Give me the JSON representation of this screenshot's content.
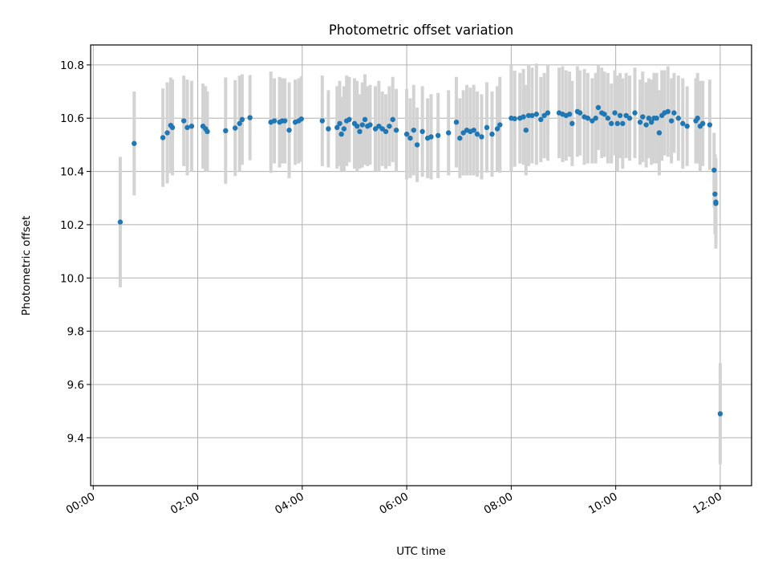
{
  "chart_data": {
    "type": "scatter",
    "title": "Photometric offset variation",
    "xlabel": "UTC time",
    "ylabel": "Photometric offset",
    "x_unit": "UTC",
    "xlim": [
      "00:00",
      "12:36"
    ],
    "ylim": [
      9.22,
      10.875
    ],
    "x_ticks": [
      "00:00",
      "02:00",
      "04:00",
      "06:00",
      "08:00",
      "10:00",
      "12:00"
    ],
    "y_ticks": [
      9.4,
      9.6,
      9.8,
      10.0,
      10.2,
      10.4,
      10.6,
      10.8
    ],
    "y_tick_labels": [
      "9.4",
      "9.6",
      "9.8",
      "10.0",
      "10.2",
      "10.4",
      "10.6",
      "10.8"
    ],
    "grid": true,
    "legend": "none",
    "colors": {
      "points": "#1f77b4",
      "error_bars": "#d3d3d3",
      "grid": "#b0b0b0"
    },
    "series": [
      {
        "x": [
          "00:31",
          "00:47",
          "01:20",
          "01:25",
          "01:29",
          "01:31",
          "01:44",
          "01:48",
          "01:53",
          "02:06",
          "02:09",
          "02:11",
          "02:32",
          "02:43",
          "02:48",
          "02:51",
          "03:00",
          "03:24",
          "03:28",
          "03:34",
          "03:37",
          "03:40",
          "03:45",
          "03:52",
          "03:56",
          "03:59",
          "04:23",
          "04:30",
          "04:40",
          "04:43",
          "04:45",
          "04:48",
          "04:51",
          "04:54",
          "05:00",
          "05:03",
          "05:06",
          "05:09",
          "05:12",
          "05:15",
          "05:18",
          "05:24",
          "05:28",
          "05:32",
          "05:36",
          "05:40",
          "05:44",
          "05:48",
          "06:00",
          "06:04",
          "06:08",
          "06:12",
          "06:18",
          "06:24",
          "06:28",
          "06:36",
          "06:48",
          "06:57",
          "07:01",
          "07:05",
          "07:09",
          "07:13",
          "07:17",
          "07:21",
          "07:26",
          "07:32",
          "07:38",
          "07:44",
          "07:47",
          "08:00",
          "08:04",
          "08:10",
          "08:14",
          "08:17",
          "08:20",
          "08:24",
          "08:29",
          "08:34",
          "08:38",
          "08:42",
          "08:55",
          "08:59",
          "09:03",
          "09:07",
          "09:10",
          "09:16",
          "09:19",
          "09:24",
          "09:28",
          "09:33",
          "09:37",
          "09:40",
          "09:44",
          "09:47",
          "09:51",
          "09:55",
          "09:59",
          "10:02",
          "10:05",
          "10:08",
          "10:12",
          "10:16",
          "10:22",
          "10:28",
          "10:31",
          "10:35",
          "10:38",
          "10:41",
          "10:44",
          "10:47",
          "10:50",
          "10:53",
          "10:56",
          "11:00",
          "11:04",
          "11:07",
          "11:12",
          "11:17",
          "11:22",
          "11:32",
          "11:34",
          "11:37",
          "11:40",
          "11:48",
          "11:53",
          "11:54",
          "11:55",
          "11:55",
          "12:00"
        ],
        "y": [
          10.21,
          10.505,
          10.527,
          10.545,
          10.573,
          10.565,
          10.59,
          10.565,
          10.57,
          10.57,
          10.56,
          10.55,
          10.553,
          10.563,
          10.58,
          10.595,
          10.602,
          10.585,
          10.59,
          10.585,
          10.59,
          10.59,
          10.555,
          10.585,
          10.59,
          10.597,
          10.59,
          10.56,
          10.565,
          10.58,
          10.54,
          10.56,
          10.59,
          10.595,
          10.58,
          10.57,
          10.55,
          10.575,
          10.595,
          10.57,
          10.575,
          10.56,
          10.57,
          10.56,
          10.55,
          10.57,
          10.595,
          10.555,
          10.54,
          10.525,
          10.555,
          10.5,
          10.55,
          10.525,
          10.53,
          10.535,
          10.545,
          10.585,
          10.525,
          10.545,
          10.555,
          10.55,
          10.555,
          10.54,
          10.53,
          10.565,
          10.54,
          10.56,
          10.575,
          10.6,
          10.598,
          10.6,
          10.605,
          10.555,
          10.61,
          10.61,
          10.615,
          10.595,
          10.61,
          10.62,
          10.62,
          10.615,
          10.61,
          10.615,
          10.58,
          10.625,
          10.62,
          10.605,
          10.6,
          10.59,
          10.6,
          10.64,
          10.62,
          10.615,
          10.6,
          10.58,
          10.62,
          10.58,
          10.61,
          10.58,
          10.61,
          10.6,
          10.62,
          10.585,
          10.605,
          10.575,
          10.6,
          10.585,
          10.6,
          10.6,
          10.545,
          10.61,
          10.62,
          10.625,
          10.59,
          10.62,
          10.6,
          10.58,
          10.57,
          10.59,
          10.6,
          10.57,
          10.58,
          10.575,
          10.405,
          10.315,
          10.285,
          10.28,
          9.49
        ],
        "error": [
          0.245,
          0.195,
          0.185,
          0.19,
          0.18,
          0.18,
          0.17,
          0.18,
          0.17,
          0.16,
          0.16,
          0.15,
          0.2,
          0.18,
          0.18,
          0.17,
          0.16,
          0.19,
          0.16,
          0.17,
          0.16,
          0.16,
          0.18,
          0.16,
          0.16,
          0.16,
          0.17,
          0.145,
          0.155,
          0.16,
          0.14,
          0.16,
          0.17,
          0.16,
          0.17,
          0.17,
          0.14,
          0.16,
          0.17,
          0.15,
          0.15,
          0.16,
          0.17,
          0.14,
          0.14,
          0.15,
          0.16,
          0.155,
          0.17,
          0.15,
          0.17,
          0.14,
          0.17,
          0.15,
          0.16,
          0.16,
          0.16,
          0.17,
          0.15,
          0.16,
          0.17,
          0.165,
          0.17,
          0.16,
          0.16,
          0.17,
          0.16,
          0.16,
          0.18,
          0.2,
          0.18,
          0.17,
          0.18,
          0.17,
          0.19,
          0.18,
          0.19,
          0.16,
          0.16,
          0.18,
          0.17,
          0.18,
          0.17,
          0.16,
          0.16,
          0.17,
          0.16,
          0.18,
          0.17,
          0.16,
          0.17,
          0.16,
          0.17,
          0.16,
          0.17,
          0.15,
          0.16,
          0.18,
          0.16,
          0.17,
          0.16,
          0.16,
          0.17,
          0.16,
          0.17,
          0.16,
          0.15,
          0.16,
          0.17,
          0.17,
          0.16,
          0.17,
          0.16,
          0.17,
          0.16,
          0.15,
          0.16,
          0.17,
          0.15,
          0.16,
          0.17,
          0.17,
          0.16,
          0.17,
          0.14,
          0.15,
          0.16,
          0.17,
          0.19
        ]
      }
    ]
  }
}
